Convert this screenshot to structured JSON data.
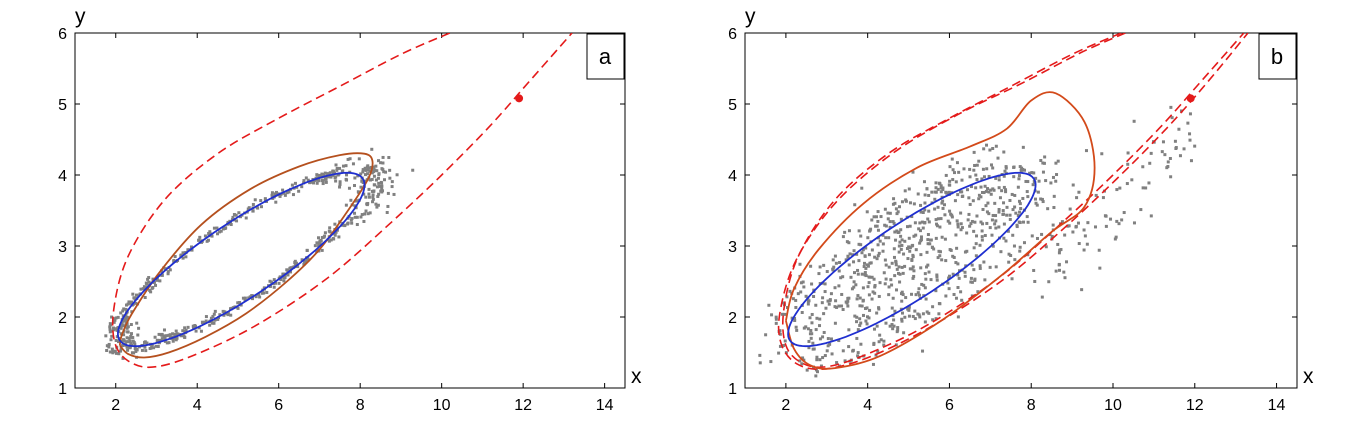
{
  "chart_data": [
    {
      "type": "scatter",
      "panel_label": "a",
      "xlabel": "x",
      "ylabel": "y",
      "xlim": [
        1,
        14.5
      ],
      "ylim": [
        1,
        6
      ],
      "xticks": [
        "2",
        "4",
        "6",
        "8",
        "10",
        "12",
        "14"
      ],
      "yticks": [
        "1",
        "2",
        "3",
        "4",
        "5",
        "6"
      ],
      "grid": false,
      "colors": {
        "blue": "#1f2fd0",
        "brown": "#b5501e",
        "red": "#e41a1a",
        "points": "#808080"
      },
      "marked_point": [
        11.9,
        5.08
      ],
      "scatter_spread": 0.06,
      "blue_ellipse": {
        "center": [
          5.08,
          2.81
        ],
        "a": 3.21,
        "b": 0.59,
        "angle_deg": 19.8
      },
      "brown_curve": [
        [
          2.1,
          1.6
        ],
        [
          2.3,
          1.48
        ],
        [
          2.7,
          1.43
        ],
        [
          3.3,
          1.5
        ],
        [
          4.2,
          1.72
        ],
        [
          5.2,
          2.05
        ],
        [
          6.2,
          2.5
        ],
        [
          7.0,
          2.95
        ],
        [
          7.7,
          3.5
        ],
        [
          8.2,
          3.95
        ],
        [
          8.3,
          4.2
        ],
        [
          8.1,
          4.3
        ],
        [
          7.5,
          4.28
        ],
        [
          6.5,
          4.12
        ],
        [
          5.3,
          3.8
        ],
        [
          4.1,
          3.3
        ],
        [
          3.1,
          2.65
        ],
        [
          2.4,
          2.05
        ],
        [
          2.15,
          1.75
        ],
        [
          2.1,
          1.6
        ]
      ],
      "red_dashed_curves": [
        [
          [
            10.2,
            6.0
          ],
          [
            9.0,
            5.7
          ],
          [
            7.5,
            5.25
          ],
          [
            6.0,
            4.8
          ],
          [
            4.5,
            4.3
          ],
          [
            3.2,
            3.65
          ],
          [
            2.3,
            2.85
          ],
          [
            1.95,
            2.1
          ],
          [
            2.0,
            1.6
          ],
          [
            2.4,
            1.35
          ],
          [
            3.0,
            1.3
          ],
          [
            4.0,
            1.48
          ],
          [
            5.5,
            1.9
          ],
          [
            7.2,
            2.55
          ],
          [
            8.7,
            3.3
          ],
          [
            10.0,
            4.0
          ],
          [
            11.2,
            4.7
          ],
          [
            12.2,
            5.35
          ],
          [
            13.2,
            6.0
          ]
        ]
      ]
    },
    {
      "type": "scatter",
      "panel_label": "b",
      "xlabel": "x",
      "ylabel": "y",
      "xlim": [
        1,
        14.5
      ],
      "ylim": [
        1,
        6
      ],
      "xticks": [
        "2",
        "4",
        "6",
        "8",
        "10",
        "12",
        "14"
      ],
      "yticks": [
        "1",
        "2",
        "3",
        "4",
        "5",
        "6"
      ],
      "grid": false,
      "colors": {
        "blue": "#1f2fd0",
        "brown": "#d34a1a",
        "red": "#e41a1a",
        "points": "#808080"
      },
      "marked_point": [
        11.9,
        5.08
      ],
      "scatter_spread": 0.5,
      "blue_ellipse": {
        "center": [
          5.08,
          2.81
        ],
        "a": 3.21,
        "b": 0.59,
        "angle_deg": 19.8
      },
      "brown_curve": [
        [
          2.0,
          1.95
        ],
        [
          2.2,
          1.55
        ],
        [
          2.6,
          1.32
        ],
        [
          3.2,
          1.28
        ],
        [
          4.3,
          1.45
        ],
        [
          5.8,
          1.95
        ],
        [
          7.3,
          2.6
        ],
        [
          8.5,
          3.2
        ],
        [
          9.3,
          3.55
        ],
        [
          9.55,
          4.1
        ],
        [
          9.3,
          4.75
        ],
        [
          8.6,
          5.15
        ],
        [
          8.0,
          5.05
        ],
        [
          7.4,
          4.65
        ],
        [
          6.5,
          4.4
        ],
        [
          5.2,
          4.1
        ],
        [
          3.9,
          3.6
        ],
        [
          2.8,
          2.95
        ],
        [
          2.2,
          2.4
        ],
        [
          2.0,
          1.95
        ]
      ],
      "red_dashed_curves": [
        [
          [
            10.2,
            6.0
          ],
          [
            9.0,
            5.7
          ],
          [
            7.5,
            5.25
          ],
          [
            6.0,
            4.8
          ],
          [
            4.5,
            4.3
          ],
          [
            3.2,
            3.65
          ],
          [
            2.3,
            2.85
          ],
          [
            1.95,
            2.1
          ],
          [
            2.0,
            1.6
          ],
          [
            2.4,
            1.35
          ],
          [
            3.0,
            1.3
          ],
          [
            4.0,
            1.48
          ],
          [
            5.5,
            1.9
          ],
          [
            7.2,
            2.55
          ],
          [
            8.7,
            3.3
          ],
          [
            10.0,
            4.0
          ],
          [
            11.2,
            4.7
          ],
          [
            12.2,
            5.35
          ],
          [
            13.2,
            6.0
          ]
        ],
        [
          [
            10.3,
            6.0
          ],
          [
            9.2,
            5.72
          ],
          [
            7.8,
            5.3
          ],
          [
            6.2,
            4.85
          ],
          [
            4.6,
            4.3
          ],
          [
            3.2,
            3.6
          ],
          [
            2.25,
            2.8
          ],
          [
            1.85,
            2.05
          ],
          [
            1.9,
            1.6
          ],
          [
            2.3,
            1.33
          ],
          [
            3.0,
            1.27
          ],
          [
            4.1,
            1.45
          ],
          [
            5.6,
            1.88
          ],
          [
            7.3,
            2.52
          ],
          [
            8.8,
            3.25
          ],
          [
            10.1,
            3.95
          ],
          [
            11.3,
            4.65
          ],
          [
            12.3,
            5.3
          ],
          [
            13.3,
            6.0
          ]
        ]
      ]
    }
  ]
}
